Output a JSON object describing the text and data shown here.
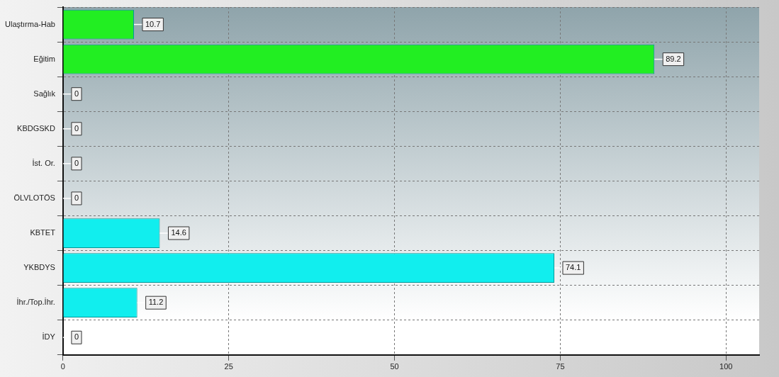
{
  "chart_data": {
    "type": "bar",
    "orientation": "horizontal",
    "categories": [
      "Ulaştırma-Hab",
      "Eğitim",
      "Sağlık",
      "KBDGSKD",
      "İst. Or.",
      "ÖLVLOTÖS",
      "KBTET",
      "YKBDYS",
      "İhr./Top.İhr.",
      "İDY"
    ],
    "values": [
      10.7,
      89.2,
      0,
      0,
      0,
      0,
      14.6,
      74.1,
      11.2,
      0
    ],
    "colors": [
      "#22ee22",
      "#22ee22",
      "#22ee22",
      "#11eeee",
      "#11eeee",
      "#11eeee",
      "#11eeee",
      "#11eeee",
      "#11eeee",
      "#11eeee"
    ],
    "xlim": [
      0,
      105
    ],
    "xticks": [
      0,
      25,
      50,
      75,
      100
    ],
    "grid": true,
    "data_labels": true
  }
}
